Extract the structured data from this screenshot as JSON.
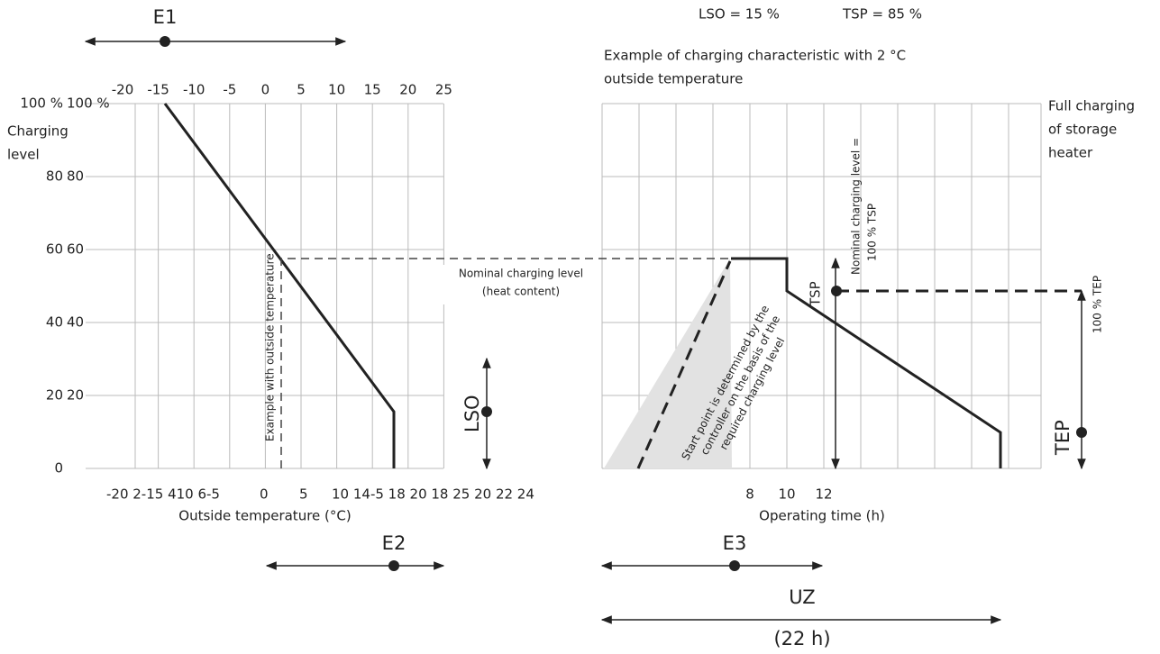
{
  "header": {
    "lso": "LSO = 15 %",
    "tsp": "TSP = 85 %",
    "example": [
      "Example of charging characteristic with 2 °C",
      "outside temperature"
    ]
  },
  "labels": {
    "e1": "E1",
    "e2": "E2",
    "e3": "E3",
    "uz": "UZ",
    "uz_hours": "(22 h)",
    "lso": "LSO",
    "tsp": "TSP",
    "tep": "TEP",
    "full_charging": [
      "Full charging",
      "of storage",
      "heater"
    ],
    "charging_level": [
      "Charging",
      "level"
    ],
    "nominal": [
      "Nominal charging level",
      "(heat content)"
    ],
    "example_outside": "Example with outside temperature",
    "start_point": [
      "Start point is determined by the",
      "controller on the basis of the",
      "required charging level"
    ],
    "nominal_tsp": [
      "Nominal charging level =",
      "100 % TSP"
    ],
    "tep_100": "100 % TEP",
    "x_axis_left": "Outside temperature (°C)",
    "x_axis_right": "Operating time (h)"
  },
  "left_chart": {
    "top_ticks": [
      "-20",
      "-15",
      "-10",
      "-5",
      "0",
      "5",
      "10",
      "15",
      "20",
      "25"
    ],
    "y_ticks_outer": [
      "100 %",
      "80",
      "60",
      "40",
      "20",
      "0"
    ],
    "y_ticks_inner": [
      "100 %",
      "80",
      "60",
      "40",
      "20"
    ],
    "bottom_ticks": [
      "-20 2-15 410 6-5",
      "0",
      "5",
      "10 14-5 18 20 18 25 20 22 24"
    ]
  },
  "right_chart": {
    "x_ticks": [
      "8",
      "10",
      "12"
    ]
  }
}
